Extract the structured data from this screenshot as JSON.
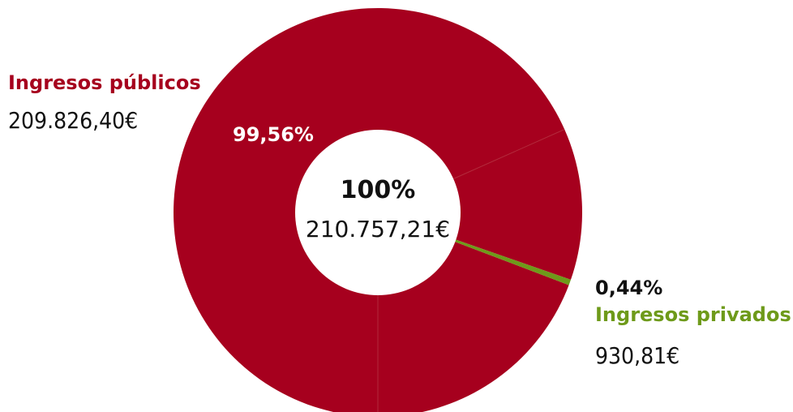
{
  "chart_data": {
    "type": "pie",
    "variant": "donut",
    "series": [
      {
        "name": "Ingresos públicos",
        "value": 209826.4,
        "value_label": "209.826,40€",
        "percent": 99.56,
        "percent_label": "99,56%",
        "color": "#a6001e"
      },
      {
        "name": "Ingresos privados",
        "value": 930.81,
        "value_label": "930,81€",
        "percent": 0.44,
        "percent_label": "0,44%",
        "color": "#6e9a1a"
      }
    ],
    "total": {
      "percent_label": "100%",
      "value": 210757.21,
      "value_label": "210.757,21€"
    },
    "legend": "none",
    "grid": false
  }
}
